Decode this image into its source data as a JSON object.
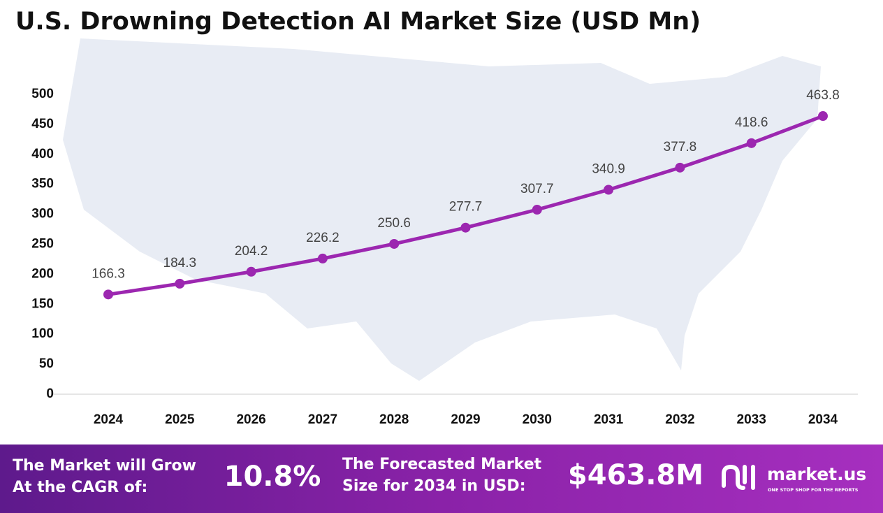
{
  "chart_data": {
    "type": "line",
    "title": "U.S. Drowning Detection AI Market Size (USD Mn)",
    "categories": [
      "2024",
      "2025",
      "2026",
      "2027",
      "2028",
      "2029",
      "2030",
      "2031",
      "2032",
      "2033",
      "2034"
    ],
    "values": [
      166.3,
      184.3,
      204.2,
      226.2,
      250.6,
      277.7,
      307.7,
      340.9,
      377.8,
      418.6,
      463.8
    ],
    "color": "#9c27b0",
    "ylim": [
      0,
      500
    ],
    "yticks": [
      0,
      50,
      100,
      150,
      200,
      250,
      300,
      350,
      400,
      450,
      500
    ],
    "grid": false
  },
  "footer": {
    "cagr_label": [
      "The Market will Grow",
      "At the CAGR of:"
    ],
    "cagr_value": "10.8%",
    "forecast_label": [
      "The Forecasted Market",
      "Size for 2034 in USD:"
    ],
    "forecast_value": "$463.8M",
    "brand": "market.us",
    "tagline": "ONE STOP SHOP FOR THE REPORTS"
  }
}
